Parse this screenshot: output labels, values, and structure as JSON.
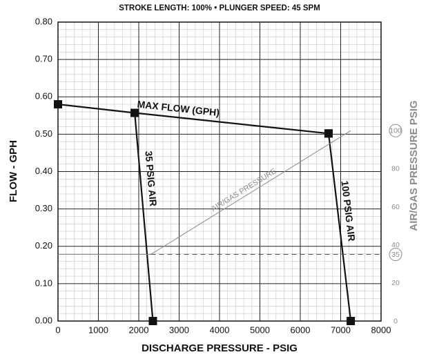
{
  "chart_data": {
    "type": "line",
    "title": "STROKE LENGTH: 100% • PLUNGER SPEED: 45 SPM",
    "xlabel": "DISCHARGE PRESSURE - PSIG",
    "ylabel": "FLOW - GPH",
    "y2label": "AIR/GAS PRESSURE PSIG",
    "xlim": [
      0,
      8000
    ],
    "xticks": [
      0,
      1000,
      2000,
      3000,
      4000,
      5000,
      6000,
      7000,
      8000
    ],
    "ylim": [
      0,
      0.8
    ],
    "yticks": [
      {
        "value": 0,
        "label": "0.00"
      },
      {
        "value": 0.1,
        "label": "0.10"
      },
      {
        "value": 0.2,
        "label": "0.20"
      },
      {
        "value": 0.3,
        "label": "0.30"
      },
      {
        "value": 0.4,
        "label": "0.40"
      },
      {
        "value": 0.5,
        "label": "0.50"
      },
      {
        "value": 0.6,
        "label": "0.60"
      },
      {
        "value": 0.7,
        "label": "0.70"
      },
      {
        "value": 0.8,
        "label": "0.80"
      }
    ],
    "y2lim": [
      0,
      157
    ],
    "y2ticks": [
      0,
      20,
      35,
      40,
      60,
      80,
      100
    ],
    "y2ticks_circled": [
      false,
      false,
      true,
      false,
      false,
      false,
      true
    ],
    "grid": true,
    "minor_divisions": 5,
    "series": [
      {
        "name": "MAX FLOW (GPH)",
        "color": "#111111",
        "x": [
          0,
          1900,
          6700
        ],
        "values": [
          0.58,
          0.557,
          0.502
        ],
        "markers": true
      },
      {
        "name": "35 PSIG AIR",
        "color": "#111111",
        "x": [
          1900,
          2350
        ],
        "values": [
          0.557,
          0
        ],
        "markers": true
      },
      {
        "name": "100 PSIG AIR",
        "color": "#111111",
        "x": [
          6700,
          7250
        ],
        "values": [
          0.502,
          0
        ],
        "markers": true
      },
      {
        "name": "AIR/GAS PRESSURE",
        "color": "#8a8a8a",
        "axis": "y2",
        "x": [
          2300,
          7250
        ],
        "values": [
          35,
          100
        ],
        "markers": false,
        "reference": true
      }
    ]
  }
}
